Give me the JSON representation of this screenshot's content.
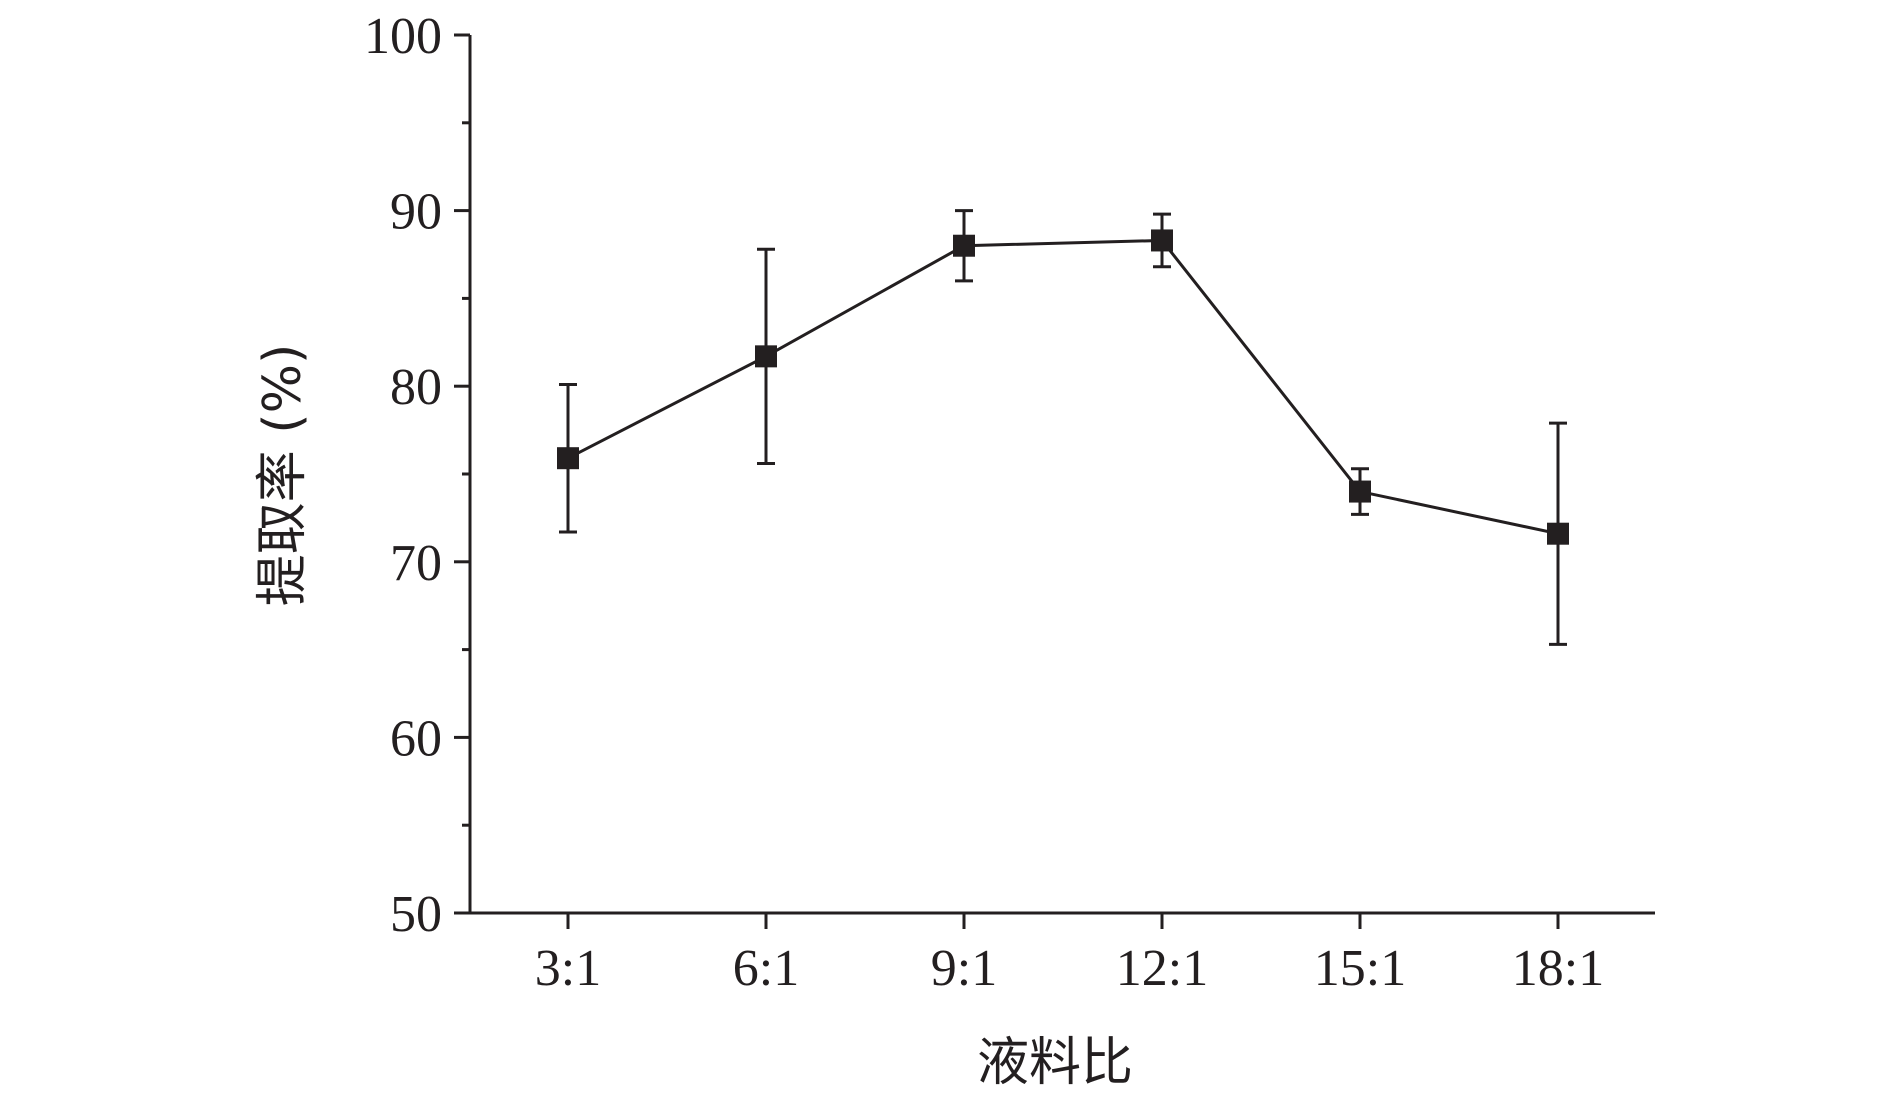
{
  "chart_data": {
    "type": "line",
    "categories": [
      "3:1",
      "6:1",
      "9:1",
      "12:1",
      "15:1",
      "18:1"
    ],
    "series": [
      {
        "values": [
          75.9,
          81.7,
          88.0,
          88.3,
          74.0,
          71.6
        ],
        "error": [
          4.2,
          6.1,
          2.0,
          1.5,
          1.3,
          6.3
        ]
      }
    ],
    "xlabel": "液料比",
    "ylabel": "提取率 (%)",
    "ylim": [
      50,
      100
    ],
    "yticks": [
      50,
      60,
      70,
      80,
      90,
      100
    ],
    "grid": false,
    "legend": "none",
    "color": "#231f20"
  }
}
